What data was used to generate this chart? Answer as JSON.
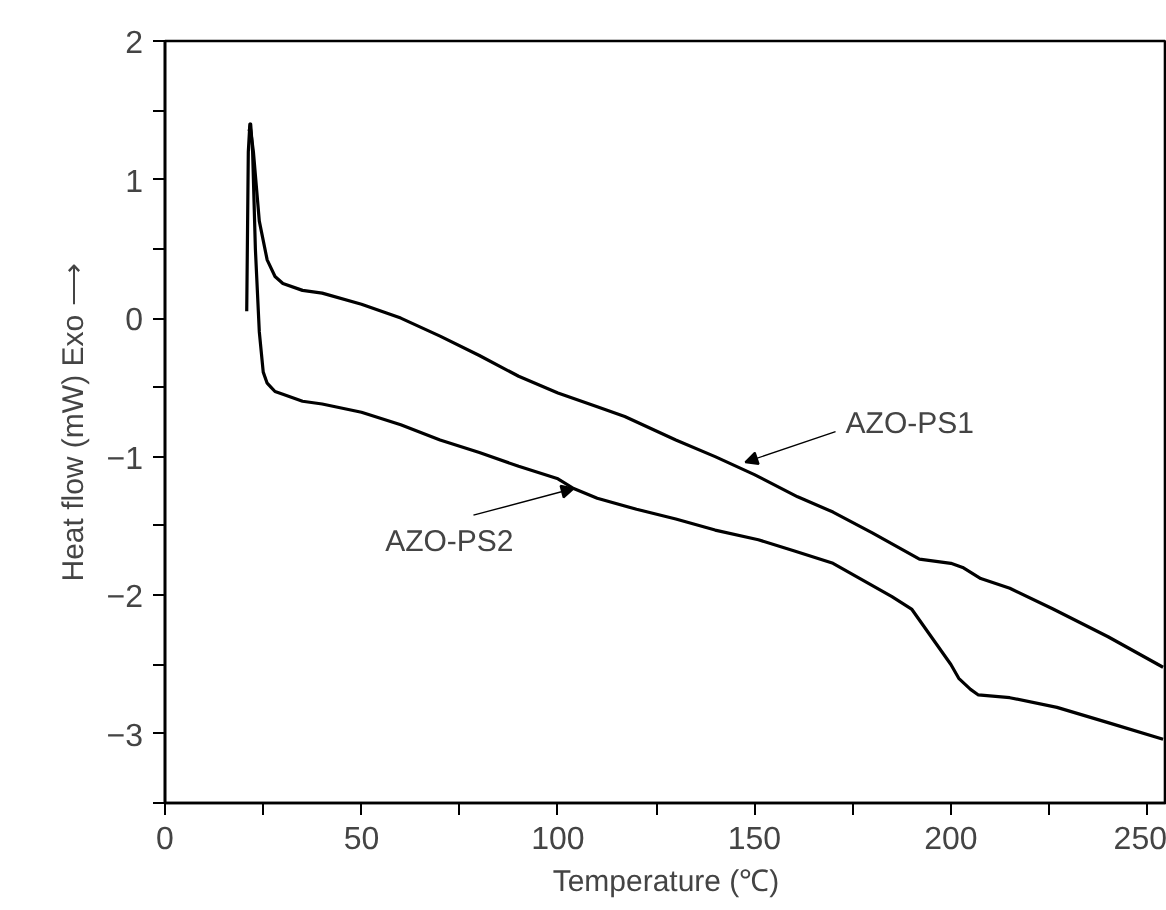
{
  "chart_data": {
    "type": "line",
    "xlabel": "Temperature (℃)",
    "ylabel": "Heat flow (mW) Exo ⟶",
    "xlim": [
      0,
      255
    ],
    "ylim": [
      -3.5,
      2
    ],
    "xticks": [
      0,
      {
        "value": 25,
        "label": null
      },
      50,
      {
        "value": 75,
        "label": null
      },
      100,
      {
        "value": 125,
        "label": null
      },
      150,
      {
        "value": 175,
        "label": null
      },
      200,
      {
        "value": 225,
        "label": null
      },
      250
    ],
    "yticks": [
      {
        "value": -3.5,
        "label": null
      },
      {
        "value": -3,
        "label": "−3"
      },
      {
        "value": -2.5,
        "label": null
      },
      {
        "value": -2,
        "label": "−2"
      },
      {
        "value": -1.5,
        "label": null
      },
      {
        "value": -1,
        "label": "−1"
      },
      {
        "value": -0.5,
        "label": null
      },
      0,
      {
        "value": 0.5,
        "label": null
      },
      1,
      {
        "value": 1.5,
        "label": null
      },
      2
    ],
    "grid": false,
    "marker": "none",
    "line_style": "solid",
    "series": [
      {
        "color": "#000000",
        "x": [
          20.8,
          21.2,
          21.6,
          22.5,
          24,
          26,
          28,
          30,
          35,
          40,
          50,
          60,
          70,
          80,
          90,
          100,
          110,
          117,
          130,
          140,
          150,
          161,
          170,
          180,
          192,
          200,
          203,
          207.6,
          215,
          226,
          240,
          254
        ],
        "values": [
          0.05,
          1.2,
          1.4,
          1.2,
          0.7,
          0.42,
          0.3,
          0.25,
          0.2,
          0.18,
          0.1,
          0,
          -0.13,
          -0.27,
          -0.42,
          -0.54,
          -0.64,
          -0.71,
          -0.88,
          -1.0,
          -1.13,
          -1.29,
          -1.4,
          -1.55,
          -1.74,
          -1.77,
          -1.8,
          -1.88,
          -1.95,
          -2.1,
          -2.3,
          -2.52
        ]
      },
      {
        "color": "#000000",
        "x": [
          21.4,
          21.8,
          22.3,
          23,
          24,
          25,
          26,
          27,
          28,
          30,
          35,
          40,
          50,
          60,
          70,
          80,
          90,
          100,
          104,
          110,
          120,
          130,
          140,
          151,
          160,
          170,
          185,
          190,
          195,
          200,
          202,
          205,
          207,
          215,
          227,
          240,
          254
        ],
        "values": [
          1.35,
          1.4,
          1.2,
          0.5,
          -0.1,
          -0.39,
          -0.47,
          -0.5,
          -0.53,
          -0.55,
          -0.6,
          -0.62,
          -0.68,
          -0.77,
          -0.88,
          -0.97,
          -1.07,
          -1.16,
          -1.23,
          -1.3,
          -1.38,
          -1.45,
          -1.53,
          -1.6,
          -1.68,
          -1.77,
          -2.01,
          -2.1,
          -2.3,
          -2.5,
          -2.6,
          -2.68,
          -2.72,
          -2.74,
          -2.81,
          -2.92,
          -3.04
        ]
      }
    ],
    "annotations": [
      {
        "text": "AZO-PS1",
        "x": 147.7,
        "y": -1.04
      },
      {
        "text": "AZO-PS2",
        "x": 104,
        "y": -1.23
      }
    ]
  }
}
